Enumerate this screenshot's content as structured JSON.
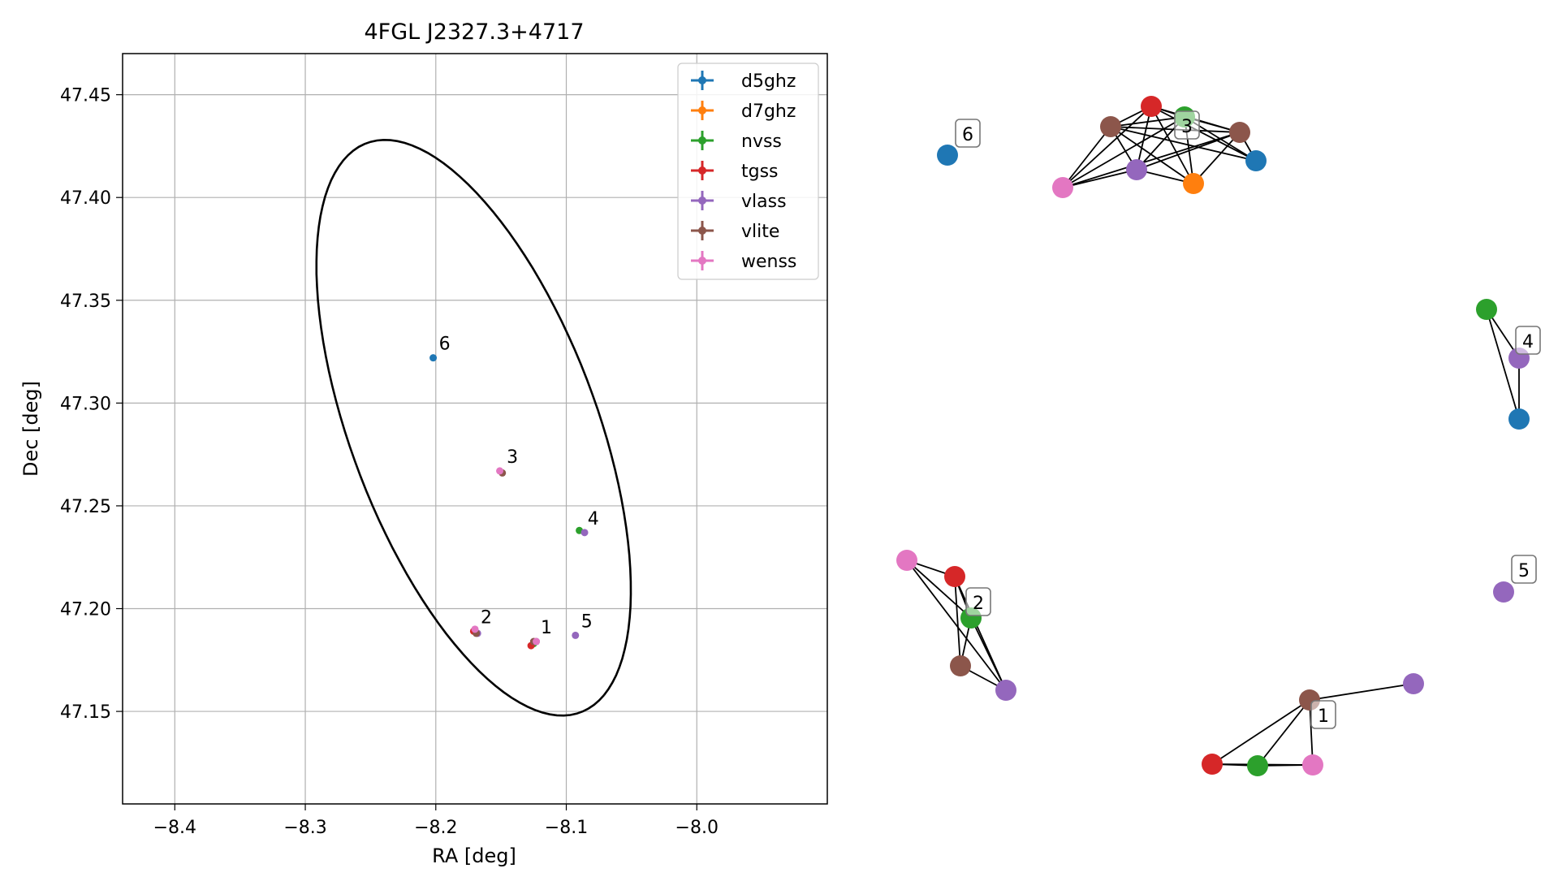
{
  "colors": {
    "d5ghz": "#1f77b4",
    "d7ghz": "#ff7f0e",
    "nvss": "#2ca02c",
    "tgss": "#d62728",
    "vlass": "#9467bd",
    "vlite": "#8c564b",
    "wenss": "#e377c2",
    "ellipse": "#000000",
    "grid": "#b0b0b0"
  },
  "chart_data": [
    {
      "type": "scatter",
      "title": "4FGL J2327.3+4717",
      "xlabel": "RA [deg]",
      "ylabel": "Dec [deg]",
      "xlim": [
        -8.44,
        -7.9
      ],
      "ylim": [
        47.105,
        47.47
      ],
      "x_ticks": [
        -8.4,
        -8.3,
        -8.2,
        -8.1,
        -8.0
      ],
      "x_tick_labels": [
        "−8.4",
        "−8.3",
        "−8.2",
        "−8.1",
        "−8.0"
      ],
      "y_ticks": [
        47.15,
        47.2,
        47.25,
        47.3,
        47.35,
        47.4,
        47.45
      ],
      "y_tick_labels": [
        "47.15",
        "47.20",
        "47.25",
        "47.30",
        "47.35",
        "47.40",
        "47.45"
      ],
      "grid": true,
      "legend_position": "top-right",
      "legend": [
        "d5ghz",
        "d7ghz",
        "nvss",
        "tgss",
        "vlass",
        "vlite",
        "wenss"
      ],
      "ellipse": {
        "center": [
          -8.171,
          47.288
        ],
        "semi_axes_deg": [
          0.164,
          0.085
        ],
        "rotation_deg": -52.5
      },
      "series": [
        {
          "name": "d5ghz",
          "points": [
            [
              -8.202,
              47.322
            ]
          ]
        },
        {
          "name": "nvss",
          "points": [
            [
              -8.09,
              47.238
            ],
            [
              -8.125,
              47.183
            ]
          ]
        },
        {
          "name": "tgss",
          "points": [
            [
              -8.127,
              47.182
            ],
            [
              -8.171,
              47.189
            ]
          ]
        },
        {
          "name": "vlass",
          "points": [
            [
              -8.086,
              47.237
            ],
            [
              -8.093,
              47.187
            ],
            [
              -8.123,
              47.184
            ],
            [
              -8.168,
              47.188
            ]
          ]
        },
        {
          "name": "vlite",
          "points": [
            [
              -8.149,
              47.266
            ],
            [
              -8.169,
              47.188
            ],
            [
              -8.125,
              47.184
            ]
          ]
        },
        {
          "name": "wenss",
          "points": [
            [
              -8.151,
              47.267
            ],
            [
              -8.17,
              47.19
            ],
            [
              -8.123,
              47.184
            ]
          ]
        }
      ],
      "annotations": [
        {
          "label": "1",
          "at": [
            -8.124,
            47.184
          ]
        },
        {
          "label": "2",
          "at": [
            -8.17,
            47.189
          ]
        },
        {
          "label": "3",
          "at": [
            -8.15,
            47.267
          ]
        },
        {
          "label": "4",
          "at": [
            -8.088,
            47.237
          ]
        },
        {
          "label": "5",
          "at": [
            -8.093,
            47.187
          ]
        },
        {
          "label": "6",
          "at": [
            -8.202,
            47.322
          ]
        }
      ]
    },
    {
      "type": "network",
      "groups": [
        {
          "label": "1",
          "nodes": [
            "vlite",
            "vlass",
            "tgss",
            "nvss",
            "wenss"
          ],
          "edges": [
            [
              0,
              1
            ],
            [
              0,
              2
            ],
            [
              0,
              3
            ],
            [
              0,
              4
            ],
            [
              2,
              3
            ],
            [
              2,
              4
            ],
            [
              3,
              4
            ]
          ]
        },
        {
          "label": "2",
          "nodes": [
            "wenss",
            "tgss",
            "nvss",
            "vlite",
            "vlass"
          ],
          "edges": [
            [
              0,
              1
            ],
            [
              0,
              2
            ],
            [
              0,
              4
            ],
            [
              1,
              2
            ],
            [
              1,
              3
            ],
            [
              1,
              4
            ],
            [
              2,
              3
            ],
            [
              2,
              4
            ],
            [
              3,
              4
            ]
          ]
        },
        {
          "label": "3",
          "nodes": [
            "vlite",
            "tgss",
            "nvss",
            "vlite",
            "wenss",
            "vlass",
            "d7ghz",
            "d5ghz"
          ],
          "edges": [
            [
              0,
              1
            ],
            [
              0,
              2
            ],
            [
              0,
              3
            ],
            [
              0,
              4
            ],
            [
              0,
              5
            ],
            [
              0,
              6
            ],
            [
              0,
              7
            ],
            [
              1,
              2
            ],
            [
              1,
              3
            ],
            [
              1,
              4
            ],
            [
              1,
              5
            ],
            [
              1,
              6
            ],
            [
              1,
              7
            ],
            [
              2,
              3
            ],
            [
              2,
              4
            ],
            [
              2,
              5
            ],
            [
              2,
              6
            ],
            [
              2,
              7
            ],
            [
              3,
              4
            ],
            [
              3,
              5
            ],
            [
              3,
              6
            ],
            [
              3,
              7
            ],
            [
              5,
              6
            ],
            [
              4,
              5
            ]
          ]
        },
        {
          "label": "4",
          "nodes": [
            "nvss",
            "vlass",
            "d5ghz"
          ],
          "edges": [
            [
              0,
              1
            ],
            [
              0,
              2
            ],
            [
              1,
              2
            ]
          ]
        },
        {
          "label": "5",
          "nodes": [
            "vlass"
          ],
          "edges": []
        },
        {
          "label": "6",
          "nodes": [
            "d5ghz"
          ],
          "edges": []
        }
      ]
    }
  ]
}
